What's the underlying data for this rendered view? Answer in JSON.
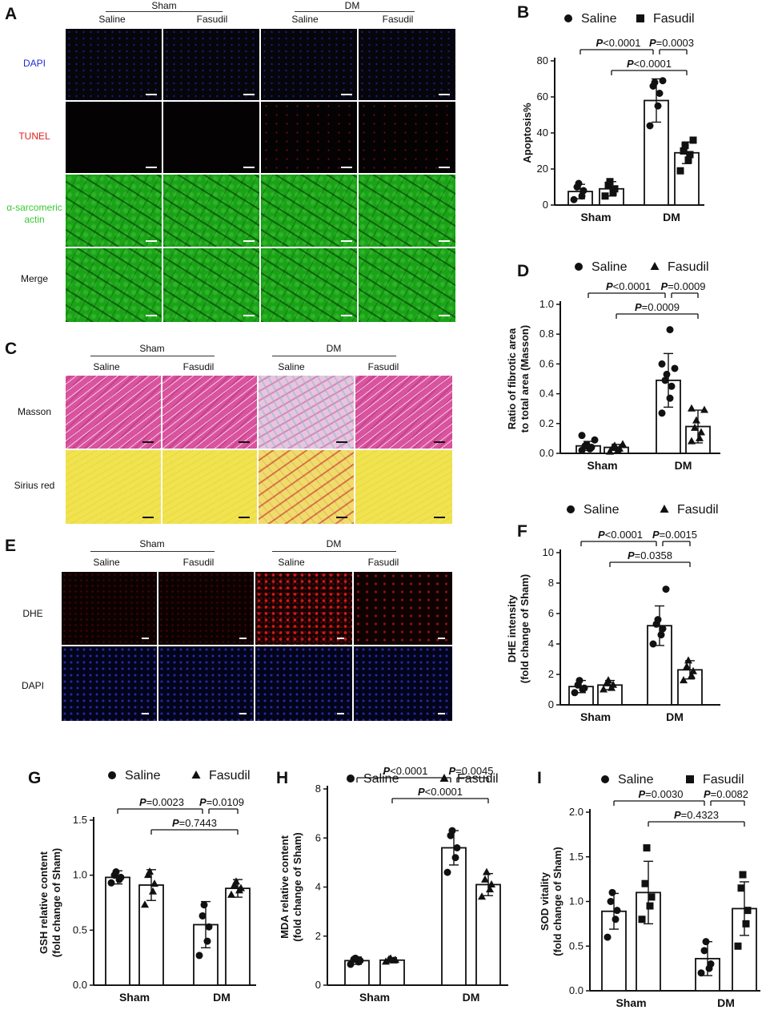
{
  "colors": {
    "dapi": "#1f2bd6",
    "tunel": "#e0201c",
    "actin": "#37c932",
    "axis": "#111111"
  },
  "panels": {
    "A": {
      "letter": "A",
      "groups": [
        "Sham",
        "DM"
      ],
      "columns": [
        "Saline",
        "Fasudil",
        "Saline",
        "Fasudil"
      ],
      "rows": [
        "DAPI",
        "TUNEL",
        "α-sarcomeric actin",
        "Merge"
      ]
    },
    "C": {
      "letter": "C",
      "groups": [
        "Sham",
        "DM"
      ],
      "columns": [
        "Saline",
        "Fasudil",
        "Saline",
        "Fasudil"
      ],
      "rows": [
        "Masson",
        "Sirius red"
      ]
    },
    "E": {
      "letter": "E",
      "groups": [
        "Sham",
        "DM"
      ],
      "columns": [
        "Saline",
        "Fasudil",
        "Saline",
        "Fasudil"
      ],
      "rows": [
        "DHE",
        "DAPI"
      ]
    }
  },
  "chart_data": [
    {
      "id": "B",
      "letter": "B",
      "type": "bar",
      "categories": [
        "Sham",
        "DM"
      ],
      "ylabel": [
        "Apoptosis%"
      ],
      "ylim": [
        0,
        80
      ],
      "yticks": [
        0,
        20,
        40,
        60,
        80
      ],
      "legend": {
        "placement": "top",
        "saline_label": "Saline",
        "fasudil_label": "Fasudil",
        "saline_marker": "circle",
        "fasudil_marker": "square"
      },
      "series": [
        {
          "name": "Saline",
          "marker": "circle",
          "means": [
            7.5,
            58
          ],
          "sd": [
            4,
            12
          ],
          "points": [
            [
              3,
              5,
              8,
              10,
              12
            ],
            [
              44,
              55,
              62,
              66,
              68,
              69
            ]
          ]
        },
        {
          "name": "Fasudil",
          "marker": "square",
          "means": [
            9,
            29
          ],
          "sd": [
            4,
            6
          ],
          "points": [
            [
              5,
              7,
              9,
              11,
              13
            ],
            [
              19,
              25,
              28,
              30,
              33,
              36
            ]
          ]
        }
      ],
      "comparisons": [
        {
          "p": "<0.0001",
          "from": [
            0,
            0
          ],
          "to": [
            1,
            0
          ],
          "level": 1
        },
        {
          "p": "=0.0003",
          "from": [
            1,
            0
          ],
          "to": [
            1,
            1
          ],
          "level": 1
        },
        {
          "p": "<0.0001",
          "from": [
            0,
            1
          ],
          "to": [
            1,
            1
          ],
          "level": 0
        }
      ]
    },
    {
      "id": "D",
      "letter": "D",
      "type": "bar",
      "categories": [
        "Sham",
        "DM"
      ],
      "ylabel": [
        "Ratio of fibrotic area",
        "to total area (Masson)"
      ],
      "ylim": [
        0,
        1.0
      ],
      "yticks": [
        0.0,
        0.2,
        0.4,
        0.6,
        0.8,
        1.0
      ],
      "legend": {
        "placement": "top",
        "saline_label": "Saline",
        "fasudil_label": "Fasudil",
        "saline_marker": "circle",
        "fasudil_marker": "triangle"
      },
      "series": [
        {
          "name": "Saline",
          "marker": "circle",
          "means": [
            0.05,
            0.49
          ],
          "sd": [
            0.03,
            0.18
          ],
          "points": [
            [
              0.02,
              0.03,
              0.04,
              0.05,
              0.06,
              0.09,
              0.12
            ],
            [
              0.27,
              0.37,
              0.45,
              0.49,
              0.53,
              0.57,
              0.6,
              0.83
            ]
          ]
        },
        {
          "name": "Fasudil",
          "marker": "triangle",
          "means": [
            0.04,
            0.18
          ],
          "sd": [
            0.02,
            0.11
          ],
          "points": [
            [
              0.01,
              0.02,
              0.03,
              0.04,
              0.05,
              0.06
            ],
            [
              0.08,
              0.1,
              0.14,
              0.17,
              0.22,
              0.29,
              0.3
            ]
          ]
        }
      ],
      "comparisons": [
        {
          "p": "<0.0001",
          "from": [
            0,
            0
          ],
          "to": [
            1,
            0
          ],
          "level": 1
        },
        {
          "p": "=0.0009",
          "from": [
            1,
            0
          ],
          "to": [
            1,
            1
          ],
          "level": 1
        },
        {
          "p": "=0.0009",
          "from": [
            0,
            1
          ],
          "to": [
            1,
            1
          ],
          "level": 0
        }
      ]
    },
    {
      "id": "F",
      "letter": "F",
      "type": "bar",
      "categories": [
        "Sham",
        "DM"
      ],
      "ylabel": [
        "DHE intensity",
        "(fold change of Sham)"
      ],
      "ylim": [
        0,
        10
      ],
      "yticks": [
        0,
        2,
        4,
        6,
        8,
        10
      ],
      "legend": {
        "placement": "top",
        "saline_label": "Saline",
        "fasudil_label": "Fasudil",
        "saline_marker": "circle",
        "fasudil_marker": "triangle"
      },
      "series": [
        {
          "name": "Saline",
          "marker": "circle",
          "means": [
            1.2,
            5.2
          ],
          "sd": [
            0.4,
            1.3
          ],
          "points": [
            [
              0.8,
              1.0,
              1.1,
              1.3,
              1.6
            ],
            [
              4.0,
              4.6,
              5.0,
              5.3,
              5.6,
              7.6
            ]
          ]
        },
        {
          "name": "Fasudil",
          "marker": "triangle",
          "means": [
            1.3,
            2.3
          ],
          "sd": [
            0.3,
            0.6
          ],
          "points": [
            [
              1.0,
              1.1,
              1.3,
              1.4,
              1.6
            ],
            [
              1.6,
              1.9,
              2.2,
              2.5,
              2.9
            ]
          ]
        }
      ],
      "comparisons": [
        {
          "p": "<0.0001",
          "from": [
            0,
            0
          ],
          "to": [
            1,
            0
          ],
          "level": 1
        },
        {
          "p": "=0.0015",
          "from": [
            1,
            0
          ],
          "to": [
            1,
            1
          ],
          "level": 1
        },
        {
          "p": "=0.0358",
          "from": [
            0,
            1
          ],
          "to": [
            1,
            1
          ],
          "level": 0
        }
      ]
    },
    {
      "id": "G",
      "letter": "G",
      "type": "bar",
      "categories": [
        "Sham",
        "DM"
      ],
      "ylabel": [
        "GSH relative content",
        "(fold change of Sham)"
      ],
      "ylim": [
        0,
        1.5
      ],
      "yticks": [
        0.0,
        0.5,
        1.0,
        1.5
      ],
      "legend": {
        "placement": "top",
        "saline_label": "Saline",
        "fasudil_label": "Fasudil",
        "saline_marker": "circle",
        "fasudil_marker": "triangle"
      },
      "series": [
        {
          "name": "Saline",
          "marker": "circle",
          "means": [
            0.98,
            0.55
          ],
          "sd": [
            0.06,
            0.21
          ],
          "points": [
            [
              0.93,
              0.96,
              0.98,
              1.0,
              1.03
            ],
            [
              0.27,
              0.4,
              0.53,
              0.63,
              0.73
            ]
          ]
        },
        {
          "name": "Fasudil",
          "marker": "triangle",
          "means": [
            0.91,
            0.88
          ],
          "sd": [
            0.14,
            0.08
          ],
          "points": [
            [
              0.73,
              0.85,
              0.92,
              1.0,
              1.03
            ],
            [
              0.82,
              0.86,
              0.88,
              0.91,
              0.94
            ]
          ]
        }
      ],
      "comparisons": [
        {
          "p": "=0.0023",
          "from": [
            0,
            0
          ],
          "to": [
            1,
            0
          ],
          "level": 1
        },
        {
          "p": "=0.0109",
          "from": [
            1,
            0
          ],
          "to": [
            1,
            1
          ],
          "level": 1
        },
        {
          "p": "=0.7443",
          "from": [
            0,
            1
          ],
          "to": [
            1,
            1
          ],
          "level": 0
        }
      ]
    },
    {
      "id": "H",
      "letter": "H",
      "type": "bar",
      "categories": [
        "Sham",
        "DM"
      ],
      "ylabel": [
        "MDA relative content",
        "(fold change of Sham)"
      ],
      "ylim": [
        0,
        8
      ],
      "yticks": [
        0,
        2,
        4,
        6,
        8
      ],
      "legend": {
        "placement": "top",
        "saline_label": "Saline",
        "fasudil_label": "Fasudil",
        "saline_marker": "circle",
        "fasudil_marker": "triangle"
      },
      "series": [
        {
          "name": "Saline",
          "marker": "circle",
          "means": [
            1.0,
            5.6
          ],
          "sd": [
            0.15,
            0.7
          ],
          "points": [
            [
              0.85,
              0.95,
              1.0,
              1.05,
              1.1
            ],
            [
              4.6,
              5.2,
              5.6,
              6.1,
              6.3
            ]
          ]
        },
        {
          "name": "Fasudil",
          "marker": "triangle",
          "means": [
            1.02,
            4.1
          ],
          "sd": [
            0.1,
            0.45
          ],
          "points": [
            [
              0.95,
              1.0,
              1.02,
              1.05,
              1.08
            ],
            [
              3.6,
              3.9,
              4.1,
              4.3,
              4.6
            ]
          ]
        }
      ],
      "comparisons": [
        {
          "p": "<0.0001",
          "from": [
            0,
            0
          ],
          "to": [
            1,
            0
          ],
          "level": 1
        },
        {
          "p": "=0.0045",
          "from": [
            1,
            0
          ],
          "to": [
            1,
            1
          ],
          "level": 1
        },
        {
          "p": "<0.0001",
          "from": [
            0,
            1
          ],
          "to": [
            1,
            1
          ],
          "level": 0
        }
      ]
    },
    {
      "id": "I",
      "letter": "I",
      "type": "bar",
      "categories": [
        "Sham",
        "DM"
      ],
      "ylabel": [
        "SOD vitality",
        "(fold change of Sham)"
      ],
      "ylim": [
        0,
        2.0
      ],
      "yticks": [
        0.0,
        0.5,
        1.0,
        1.5,
        2.0
      ],
      "legend": {
        "placement": "top",
        "saline_label": "Saline",
        "fasudil_label": "Fasudil",
        "saline_marker": "circle",
        "fasudil_marker": "square"
      },
      "series": [
        {
          "name": "Saline",
          "marker": "circle",
          "means": [
            0.89,
            0.36
          ],
          "sd": [
            0.2,
            0.19
          ],
          "points": [
            [
              0.6,
              0.8,
              0.9,
              1.0,
              1.1
            ],
            [
              0.2,
              0.25,
              0.3,
              0.45,
              0.55
            ]
          ]
        },
        {
          "name": "Fasudil",
          "marker": "square",
          "means": [
            1.1,
            0.92
          ],
          "sd": [
            0.35,
            0.3
          ],
          "points": [
            [
              0.8,
              0.95,
              1.05,
              1.2,
              1.6
            ],
            [
              0.5,
              0.75,
              0.9,
              1.15,
              1.3
            ]
          ]
        }
      ],
      "comparisons": [
        {
          "p": "=0.0030",
          "from": [
            0,
            0
          ],
          "to": [
            1,
            0
          ],
          "level": 1
        },
        {
          "p": "=0.0082",
          "from": [
            1,
            0
          ],
          "to": [
            1,
            1
          ],
          "level": 1
        },
        {
          "p": "=0.4323",
          "from": [
            0,
            1
          ],
          "to": [
            1,
            1
          ],
          "level": 0
        }
      ]
    }
  ]
}
